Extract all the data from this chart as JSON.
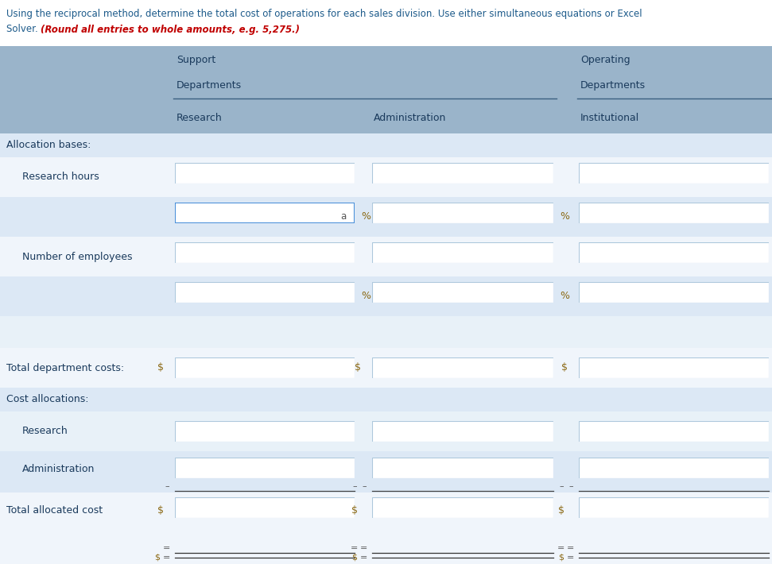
{
  "title_line1": "Using the reciprocal method, determine the total cost of operations for each sales division. Use either simultaneous equations or Excel",
  "title_line2": "Solver. ",
  "title_italic": "(Round all entries to whole amounts, e.g. 5,275.)",
  "title_color": "#1c5a8a",
  "title_italic_color": "#c00000",
  "header_bg": "#9ab4ca",
  "row_alt1": "#dce8f5",
  "row_alt2": "#e8f1f8",
  "row_white": "#f0f5fb",
  "col_header_color": "#1a3a5c",
  "label_color": "#1a3a5c",
  "symbol_color": "#8b6914",
  "highlight_box_color": "#4a90d9",
  "normal_box_color": "#adc8dc",
  "support_label": "Support",
  "departments_label": "Departments",
  "operating_label": "Operating",
  "col1_label": "Research",
  "col2_label": "Administration",
  "col3_label": "Institutional",
  "alloc_bases": "Allocation bases:",
  "research_hours": "Research hours",
  "num_employees": "Number of employees",
  "total_dept_costs": "Total department costs:",
  "cost_alloc": "Cost allocations:",
  "research": "Research",
  "administration": "Administration",
  "total_alloc_cost": "Total allocated cost",
  "fig_width": 9.71,
  "fig_height": 7.1,
  "dpi": 100
}
